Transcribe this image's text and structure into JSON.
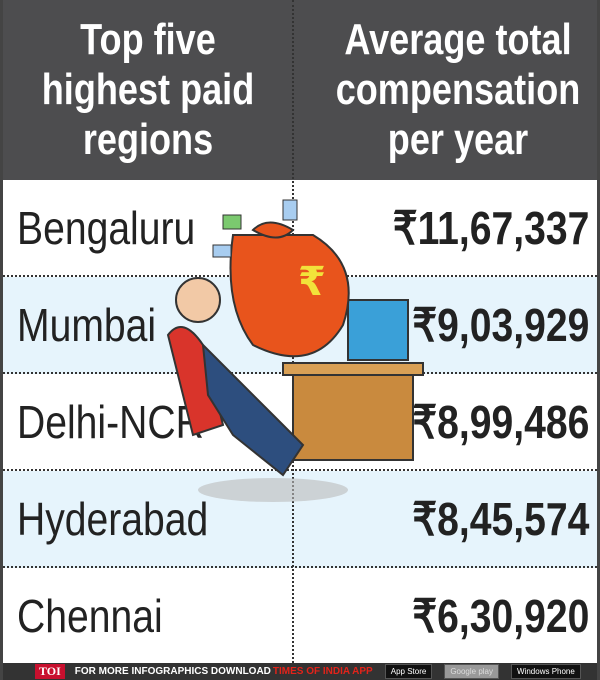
{
  "chart_data": {
    "type": "table",
    "columns": [
      "Top five highest paid regions",
      "Average total compensation per year"
    ],
    "rows": [
      {
        "region": "Bengaluru",
        "value": "₹11,67,337"
      },
      {
        "region": "Mumbai",
        "value": "₹9,03,929"
      },
      {
        "region": "Delhi-NCR",
        "value": "₹8,99,486"
      },
      {
        "region": "Hyderabad",
        "value": "₹8,45,574"
      },
      {
        "region": "Chennai",
        "value": "₹6,30,920"
      }
    ]
  },
  "header": {
    "col1": [
      "Top five",
      "highest paid",
      "regions"
    ],
    "col2": [
      "Average total",
      "compensation",
      "per year"
    ]
  },
  "footer": {
    "logo": "TOI",
    "text": "FOR MORE  INFOGRAPHICS DOWNLOAD",
    "highlight": "TIMES OF INDIA  APP",
    "badges": [
      "App Store",
      "Google play",
      "Windows Phone"
    ]
  },
  "colors": {
    "header_bg": "#4d4d4f",
    "alt_row": "#e6f4fc",
    "toi_red": "#c8102e",
    "bag": "#e8541c"
  }
}
